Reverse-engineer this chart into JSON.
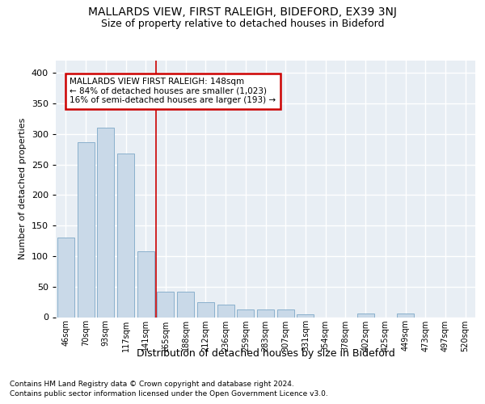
{
  "title": "MALLARDS VIEW, FIRST RALEIGH, BIDEFORD, EX39 3NJ",
  "subtitle": "Size of property relative to detached houses in Bideford",
  "xlabel": "Distribution of detached houses by size in Bideford",
  "ylabel": "Number of detached properties",
  "footnote1": "Contains HM Land Registry data © Crown copyright and database right 2024.",
  "footnote2": "Contains public sector information licensed under the Open Government Licence v3.0.",
  "annotation_title": "MALLARDS VIEW FIRST RALEIGH: 148sqm",
  "annotation_line1": "← 84% of detached houses are smaller (1,023)",
  "annotation_line2": "16% of semi-detached houses are larger (193) →",
  "bar_labels": [
    "46sqm",
    "70sqm",
    "93sqm",
    "117sqm",
    "141sqm",
    "165sqm",
    "188sqm",
    "212sqm",
    "236sqm",
    "259sqm",
    "283sqm",
    "307sqm",
    "331sqm",
    "354sqm",
    "378sqm",
    "402sqm",
    "425sqm",
    "449sqm",
    "473sqm",
    "497sqm",
    "520sqm"
  ],
  "bar_values": [
    130,
    287,
    310,
    268,
    108,
    42,
    42,
    25,
    20,
    13,
    12,
    13,
    4,
    0,
    0,
    6,
    0,
    6,
    0,
    0,
    0
  ],
  "bar_color": "#c9d9e8",
  "bar_edge_color": "#8ab0cc",
  "vline_x": 4.5,
  "vline_color": "#cc0000",
  "annotation_box_color": "#cc0000",
  "background_color": "#e8eef4",
  "ylim": [
    0,
    420
  ],
  "yticks": [
    0,
    50,
    100,
    150,
    200,
    250,
    300,
    350,
    400
  ]
}
